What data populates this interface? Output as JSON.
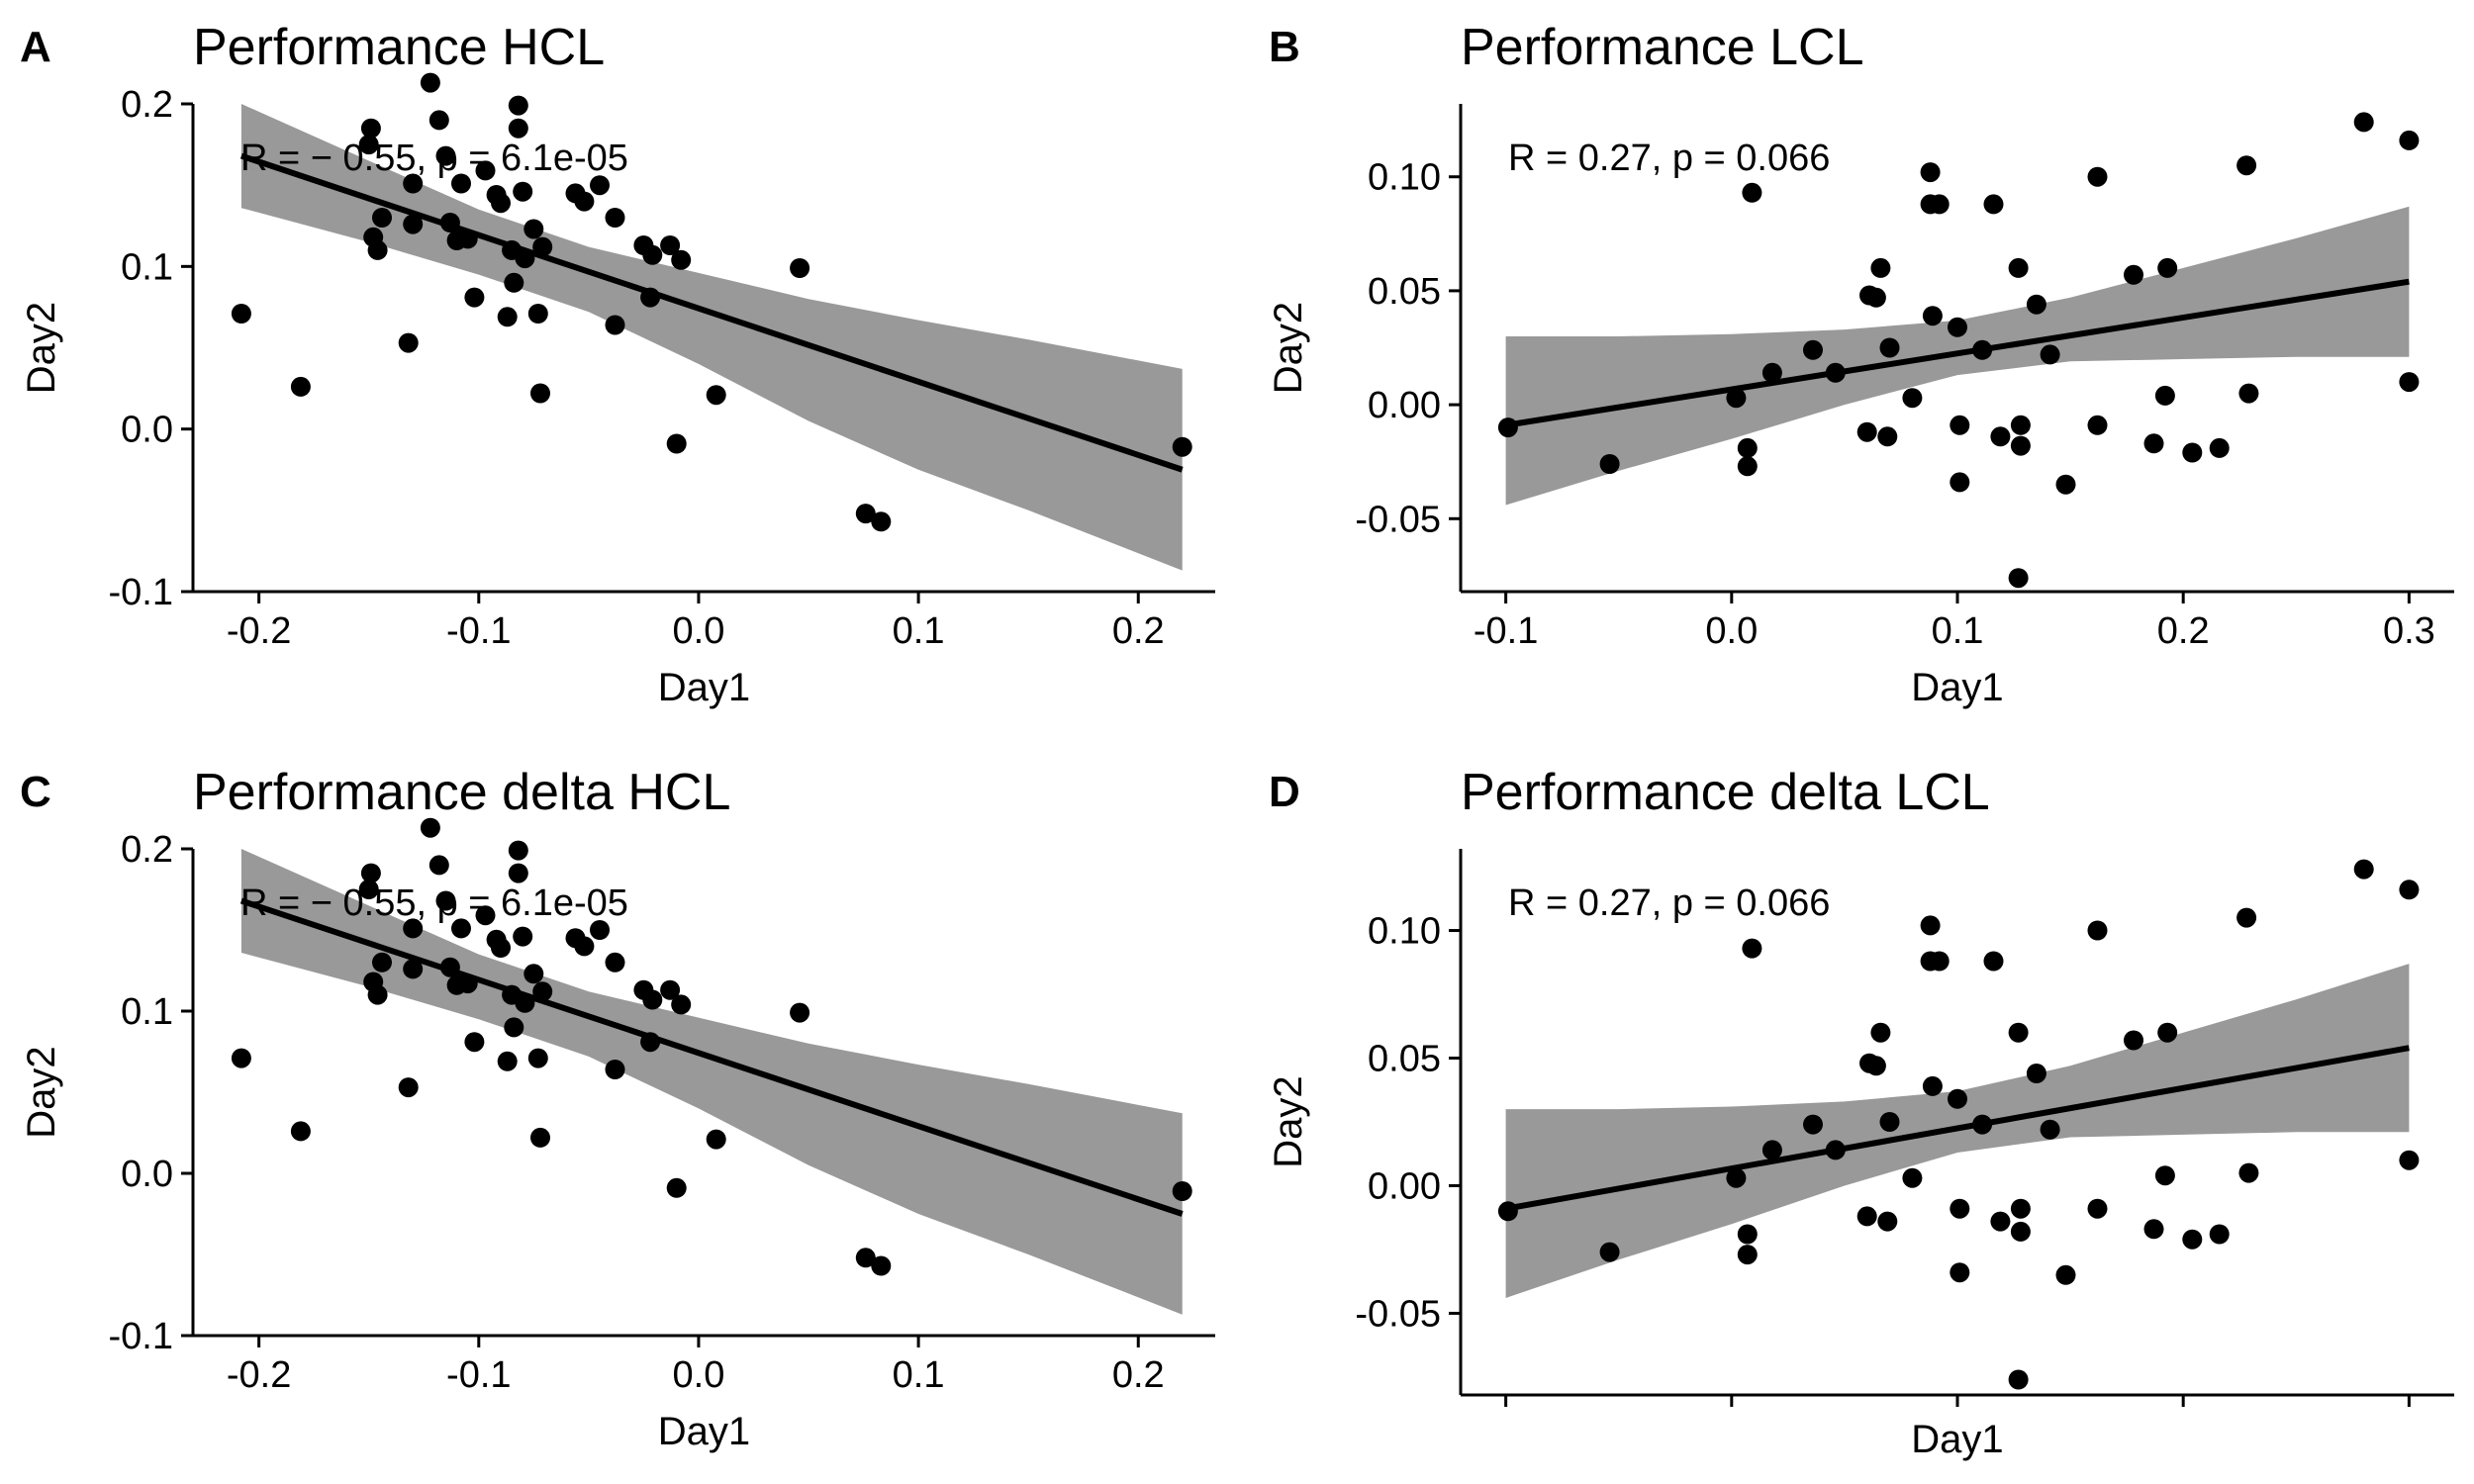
{
  "chart_data": [
    {
      "panel": "A",
      "title": "Performance HCL",
      "type": "scatter",
      "xlabel": "Day1",
      "ylabel": "Day2",
      "xlim": [
        -0.23,
        0.235
      ],
      "ylim": [
        -0.1,
        0.2
      ],
      "xticks": [
        -0.2,
        -0.1,
        0.0,
        0.1,
        0.2
      ],
      "xtick_labels": [
        "-0.2",
        "-0.1",
        "0.0",
        "0.1",
        "0.2"
      ],
      "yticks": [
        -0.1,
        0.0,
        0.1,
        0.2
      ],
      "ytick_labels": [
        "-0.1",
        "0.0",
        "0.1",
        "0.2"
      ],
      "annotation": "R = − 0.55, p = 6.1e-05",
      "regression": {
        "x0": -0.208,
        "y0": 0.168,
        "x1": 0.22,
        "y1": -0.025
      },
      "confidence_band": {
        "x": [
          -0.208,
          -0.15,
          -0.1,
          -0.05,
          0.0,
          0.05,
          0.1,
          0.15,
          0.22
        ],
        "lower": [
          0.136,
          0.115,
          0.095,
          0.072,
          0.04,
          0.005,
          -0.025,
          -0.05,
          -0.087
        ],
        "upper": [
          0.2,
          0.165,
          0.135,
          0.112,
          0.096,
          0.08,
          0.067,
          0.055,
          0.037
        ]
      },
      "grid": false,
      "legend": "none",
      "points": [
        {
          "x": -0.208,
          "y": 0.071
        },
        {
          "x": -0.181,
          "y": 0.026
        },
        {
          "x": -0.15,
          "y": 0.175
        },
        {
          "x": -0.149,
          "y": 0.185
        },
        {
          "x": -0.148,
          "y": 0.118
        },
        {
          "x": -0.146,
          "y": 0.11
        },
        {
          "x": -0.144,
          "y": 0.13
        },
        {
          "x": -0.132,
          "y": 0.053
        },
        {
          "x": -0.13,
          "y": 0.126
        },
        {
          "x": -0.13,
          "y": 0.151
        },
        {
          "x": -0.122,
          "y": 0.213
        },
        {
          "x": -0.118,
          "y": 0.19
        },
        {
          "x": -0.115,
          "y": 0.168
        },
        {
          "x": -0.113,
          "y": 0.127
        },
        {
          "x": -0.11,
          "y": 0.116
        },
        {
          "x": -0.108,
          "y": 0.151
        },
        {
          "x": -0.105,
          "y": 0.117
        },
        {
          "x": -0.102,
          "y": 0.081
        },
        {
          "x": -0.097,
          "y": 0.159
        },
        {
          "x": -0.092,
          "y": 0.144
        },
        {
          "x": -0.09,
          "y": 0.139
        },
        {
          "x": -0.087,
          "y": 0.069
        },
        {
          "x": -0.085,
          "y": 0.11
        },
        {
          "x": -0.084,
          "y": 0.09
        },
        {
          "x": -0.082,
          "y": 0.199
        },
        {
          "x": -0.082,
          "y": 0.185
        },
        {
          "x": -0.08,
          "y": 0.146
        },
        {
          "x": -0.079,
          "y": 0.105
        },
        {
          "x": -0.075,
          "y": 0.123
        },
        {
          "x": -0.073,
          "y": 0.071
        },
        {
          "x": -0.072,
          "y": 0.022
        },
        {
          "x": -0.071,
          "y": 0.112
        },
        {
          "x": -0.056,
          "y": 0.145
        },
        {
          "x": -0.052,
          "y": 0.14
        },
        {
          "x": -0.045,
          "y": 0.15
        },
        {
          "x": -0.038,
          "y": 0.13
        },
        {
          "x": -0.038,
          "y": 0.064
        },
        {
          "x": -0.025,
          "y": 0.113
        },
        {
          "x": -0.022,
          "y": 0.081
        },
        {
          "x": -0.021,
          "y": 0.107
        },
        {
          "x": -0.013,
          "y": 0.113
        },
        {
          "x": -0.01,
          "y": -0.009
        },
        {
          "x": -0.008,
          "y": 0.104
        },
        {
          "x": 0.008,
          "y": 0.021
        },
        {
          "x": 0.046,
          "y": 0.099
        },
        {
          "x": 0.076,
          "y": -0.052
        },
        {
          "x": 0.083,
          "y": -0.057
        },
        {
          "x": 0.22,
          "y": -0.011
        }
      ]
    },
    {
      "panel": "B",
      "title": "Performance LCL",
      "type": "scatter",
      "xlabel": "Day1",
      "ylabel": "Day2",
      "xlim": [
        -0.12,
        0.32
      ],
      "ylim": [
        -0.082,
        0.132
      ],
      "xticks": [
        -0.1,
        0.0,
        0.1,
        0.2,
        0.3
      ],
      "xtick_labels": [
        "-0.1",
        "0.0",
        "0.1",
        "0.2",
        "0.3"
      ],
      "yticks": [
        -0.05,
        0.0,
        0.05,
        0.1
      ],
      "ytick_labels": [
        "-0.05",
        "0.00",
        "0.05",
        "0.10"
      ],
      "annotation": "R = 0.27, p = 0.066",
      "regression": {
        "x0": -0.1,
        "y0": -0.009,
        "x1": 0.3,
        "y1": 0.054
      },
      "confidence_band": {
        "x": [
          -0.1,
          -0.05,
          0.0,
          0.05,
          0.1,
          0.15,
          0.2,
          0.25,
          0.3
        ],
        "lower": [
          -0.044,
          -0.029,
          -0.015,
          0.0,
          0.013,
          0.019,
          0.02,
          0.021,
          0.021
        ],
        "upper": [
          0.03,
          0.03,
          0.031,
          0.033,
          0.037,
          0.047,
          0.06,
          0.073,
          0.087
        ]
      },
      "grid": false,
      "legend": "none",
      "points": [
        {
          "x": -0.099,
          "y": -0.01
        },
        {
          "x": -0.054,
          "y": -0.026
        },
        {
          "x": 0.002,
          "y": 0.003
        },
        {
          "x": 0.007,
          "y": -0.019
        },
        {
          "x": 0.007,
          "y": -0.027
        },
        {
          "x": 0.009,
          "y": 0.093
        },
        {
          "x": 0.018,
          "y": 0.014
        },
        {
          "x": 0.036,
          "y": 0.024
        },
        {
          "x": 0.046,
          "y": 0.014
        },
        {
          "x": 0.06,
          "y": -0.012
        },
        {
          "x": 0.061,
          "y": 0.048
        },
        {
          "x": 0.064,
          "y": 0.047
        },
        {
          "x": 0.066,
          "y": 0.06
        },
        {
          "x": 0.069,
          "y": -0.014
        },
        {
          "x": 0.07,
          "y": 0.025
        },
        {
          "x": 0.08,
          "y": 0.003
        },
        {
          "x": 0.088,
          "y": 0.102
        },
        {
          "x": 0.088,
          "y": 0.088
        },
        {
          "x": 0.089,
          "y": 0.039
        },
        {
          "x": 0.092,
          "y": 0.088
        },
        {
          "x": 0.1,
          "y": 0.034
        },
        {
          "x": 0.101,
          "y": -0.009
        },
        {
          "x": 0.101,
          "y": -0.034
        },
        {
          "x": 0.111,
          "y": 0.024
        },
        {
          "x": 0.116,
          "y": 0.088
        },
        {
          "x": 0.119,
          "y": -0.014
        },
        {
          "x": 0.127,
          "y": 0.06
        },
        {
          "x": 0.128,
          "y": -0.009
        },
        {
          "x": 0.128,
          "y": -0.018
        },
        {
          "x": 0.127,
          "y": -0.076
        },
        {
          "x": 0.135,
          "y": 0.044
        },
        {
          "x": 0.141,
          "y": 0.022
        },
        {
          "x": 0.148,
          "y": -0.035
        },
        {
          "x": 0.162,
          "y": 0.1
        },
        {
          "x": 0.162,
          "y": -0.009
        },
        {
          "x": 0.178,
          "y": 0.057
        },
        {
          "x": 0.187,
          "y": -0.017
        },
        {
          "x": 0.192,
          "y": 0.004
        },
        {
          "x": 0.193,
          "y": 0.06
        },
        {
          "x": 0.204,
          "y": -0.021
        },
        {
          "x": 0.216,
          "y": -0.019
        },
        {
          "x": 0.228,
          "y": 0.105
        },
        {
          "x": 0.229,
          "y": 0.005
        },
        {
          "x": 0.28,
          "y": 0.124
        },
        {
          "x": 0.3,
          "y": 0.116
        },
        {
          "x": 0.3,
          "y": 0.01
        }
      ]
    },
    {
      "panel": "C",
      "title": "Performance delta HCL",
      "type": "scatter",
      "xlabel": "Day1",
      "ylabel": "Day2",
      "xlim": [
        -0.23,
        0.235
      ],
      "ylim": [
        -0.1,
        0.2
      ],
      "xticks": [
        -0.2,
        -0.1,
        0.0,
        0.1,
        0.2
      ],
      "xtick_labels": [
        "-0.2",
        "-0.1",
        "0.0",
        "0.1",
        "0.2"
      ],
      "yticks": [
        -0.1,
        0.0,
        0.1,
        0.2
      ],
      "ytick_labels": [
        "-0.1",
        "0.0",
        "0.1",
        "0.2"
      ],
      "annotation": "R = − 0.55, p = 6.1e-05",
      "regression": {
        "x0": -0.208,
        "y0": 0.168,
        "x1": 0.22,
        "y1": -0.025
      },
      "confidence_band": {
        "x": [
          -0.208,
          -0.15,
          -0.1,
          -0.05,
          0.0,
          0.05,
          0.1,
          0.15,
          0.22
        ],
        "lower": [
          0.136,
          0.115,
          0.095,
          0.072,
          0.04,
          0.005,
          -0.025,
          -0.05,
          -0.087
        ],
        "upper": [
          0.2,
          0.165,
          0.135,
          0.112,
          0.096,
          0.08,
          0.067,
          0.055,
          0.037
        ]
      },
      "grid": false,
      "legend": "none",
      "points": [
        {
          "x": -0.208,
          "y": 0.071
        },
        {
          "x": -0.181,
          "y": 0.026
        },
        {
          "x": -0.15,
          "y": 0.175
        },
        {
          "x": -0.149,
          "y": 0.185
        },
        {
          "x": -0.148,
          "y": 0.118
        },
        {
          "x": -0.146,
          "y": 0.11
        },
        {
          "x": -0.144,
          "y": 0.13
        },
        {
          "x": -0.132,
          "y": 0.053
        },
        {
          "x": -0.13,
          "y": 0.126
        },
        {
          "x": -0.13,
          "y": 0.151
        },
        {
          "x": -0.122,
          "y": 0.213
        },
        {
          "x": -0.118,
          "y": 0.19
        },
        {
          "x": -0.115,
          "y": 0.168
        },
        {
          "x": -0.113,
          "y": 0.127
        },
        {
          "x": -0.11,
          "y": 0.116
        },
        {
          "x": -0.108,
          "y": 0.151
        },
        {
          "x": -0.105,
          "y": 0.117
        },
        {
          "x": -0.102,
          "y": 0.081
        },
        {
          "x": -0.097,
          "y": 0.159
        },
        {
          "x": -0.092,
          "y": 0.144
        },
        {
          "x": -0.09,
          "y": 0.139
        },
        {
          "x": -0.087,
          "y": 0.069
        },
        {
          "x": -0.085,
          "y": 0.11
        },
        {
          "x": -0.084,
          "y": 0.09
        },
        {
          "x": -0.082,
          "y": 0.199
        },
        {
          "x": -0.082,
          "y": 0.185
        },
        {
          "x": -0.08,
          "y": 0.146
        },
        {
          "x": -0.079,
          "y": 0.105
        },
        {
          "x": -0.075,
          "y": 0.123
        },
        {
          "x": -0.073,
          "y": 0.071
        },
        {
          "x": -0.072,
          "y": 0.022
        },
        {
          "x": -0.071,
          "y": 0.112
        },
        {
          "x": -0.056,
          "y": 0.145
        },
        {
          "x": -0.052,
          "y": 0.14
        },
        {
          "x": -0.045,
          "y": 0.15
        },
        {
          "x": -0.038,
          "y": 0.13
        },
        {
          "x": -0.038,
          "y": 0.064
        },
        {
          "x": -0.025,
          "y": 0.113
        },
        {
          "x": -0.022,
          "y": 0.081
        },
        {
          "x": -0.021,
          "y": 0.107
        },
        {
          "x": -0.013,
          "y": 0.113
        },
        {
          "x": -0.01,
          "y": -0.009
        },
        {
          "x": -0.008,
          "y": 0.104
        },
        {
          "x": 0.008,
          "y": 0.021
        },
        {
          "x": 0.046,
          "y": 0.099
        },
        {
          "x": 0.076,
          "y": -0.052
        },
        {
          "x": 0.083,
          "y": -0.057
        },
        {
          "x": 0.22,
          "y": -0.011
        }
      ]
    },
    {
      "panel": "D",
      "title": "Performance delta LCL",
      "type": "scatter",
      "xlabel": "Day1",
      "ylabel": "Day2",
      "xlim": [
        -0.12,
        0.32
      ],
      "ylim": [
        -0.082,
        0.132
      ],
      "xticks": [
        -0.1,
        0.0,
        0.1,
        0.2,
        0.3
      ],
      "xtick_labels": [
        "",
        "",
        "",
        "",
        ""
      ],
      "yticks": [
        -0.05,
        0.0,
        0.05,
        0.1
      ],
      "ytick_labels": [
        "-0.05",
        "0.00",
        "0.05",
        "0.10"
      ],
      "annotation": "R = 0.27, p = 0.066",
      "regression": {
        "x0": -0.1,
        "y0": -0.009,
        "x1": 0.3,
        "y1": 0.054
      },
      "confidence_band": {
        "x": [
          -0.1,
          -0.05,
          0.0,
          0.05,
          0.1,
          0.15,
          0.2,
          0.25,
          0.3
        ],
        "lower": [
          -0.044,
          -0.029,
          -0.015,
          0.0,
          0.013,
          0.019,
          0.02,
          0.021,
          0.021
        ],
        "upper": [
          0.03,
          0.03,
          0.031,
          0.033,
          0.037,
          0.047,
          0.06,
          0.073,
          0.087
        ]
      },
      "grid": false,
      "legend": "none",
      "points": [
        {
          "x": -0.099,
          "y": -0.01
        },
        {
          "x": -0.054,
          "y": -0.026
        },
        {
          "x": 0.002,
          "y": 0.003
        },
        {
          "x": 0.007,
          "y": -0.019
        },
        {
          "x": 0.007,
          "y": -0.027
        },
        {
          "x": 0.009,
          "y": 0.093
        },
        {
          "x": 0.018,
          "y": 0.014
        },
        {
          "x": 0.036,
          "y": 0.024
        },
        {
          "x": 0.046,
          "y": 0.014
        },
        {
          "x": 0.06,
          "y": -0.012
        },
        {
          "x": 0.061,
          "y": 0.048
        },
        {
          "x": 0.064,
          "y": 0.047
        },
        {
          "x": 0.066,
          "y": 0.06
        },
        {
          "x": 0.069,
          "y": -0.014
        },
        {
          "x": 0.07,
          "y": 0.025
        },
        {
          "x": 0.08,
          "y": 0.003
        },
        {
          "x": 0.088,
          "y": 0.102
        },
        {
          "x": 0.088,
          "y": 0.088
        },
        {
          "x": 0.089,
          "y": 0.039
        },
        {
          "x": 0.092,
          "y": 0.088
        },
        {
          "x": 0.1,
          "y": 0.034
        },
        {
          "x": 0.101,
          "y": -0.009
        },
        {
          "x": 0.101,
          "y": -0.034
        },
        {
          "x": 0.111,
          "y": 0.024
        },
        {
          "x": 0.116,
          "y": 0.088
        },
        {
          "x": 0.119,
          "y": -0.014
        },
        {
          "x": 0.127,
          "y": 0.06
        },
        {
          "x": 0.128,
          "y": -0.009
        },
        {
          "x": 0.128,
          "y": -0.018
        },
        {
          "x": 0.127,
          "y": -0.076
        },
        {
          "x": 0.135,
          "y": 0.044
        },
        {
          "x": 0.141,
          "y": 0.022
        },
        {
          "x": 0.148,
          "y": -0.035
        },
        {
          "x": 0.162,
          "y": 0.1
        },
        {
          "x": 0.162,
          "y": -0.009
        },
        {
          "x": 0.178,
          "y": 0.057
        },
        {
          "x": 0.187,
          "y": -0.017
        },
        {
          "x": 0.192,
          "y": 0.004
        },
        {
          "x": 0.193,
          "y": 0.06
        },
        {
          "x": 0.204,
          "y": -0.021
        },
        {
          "x": 0.216,
          "y": -0.019
        },
        {
          "x": 0.228,
          "y": 0.105
        },
        {
          "x": 0.229,
          "y": 0.005
        },
        {
          "x": 0.28,
          "y": 0.124
        },
        {
          "x": 0.3,
          "y": 0.116
        },
        {
          "x": 0.3,
          "y": 0.01
        }
      ]
    }
  ],
  "colors": {
    "point": "#000000",
    "regression_line": "#000000",
    "confidence_band": "#999999",
    "axis": "#000000",
    "background": "#ffffff"
  }
}
